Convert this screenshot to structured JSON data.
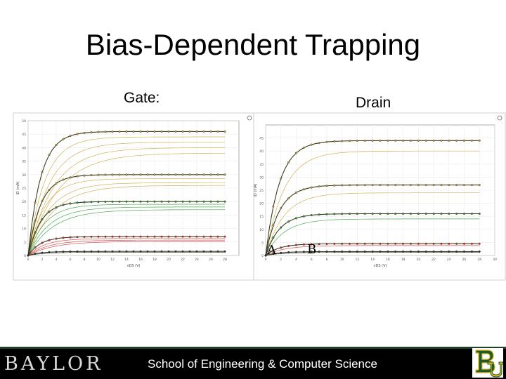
{
  "title": "Bias-Dependent Trapping",
  "labels": {
    "gate": "Gate:",
    "drain": "Drain"
  },
  "markers": {
    "a": "A",
    "b": "B"
  },
  "footer": {
    "wordmark": "BAYLOR",
    "text": "School of Engineering & Computer Science",
    "logo": "bu-monogram-logo"
  },
  "colors": {
    "yellow_series": "#c9a43a",
    "green_series": "#2e9a36",
    "red_series": "#d23434",
    "footer_bg": "#000000",
    "logo_gold": "#e8b923",
    "logo_green": "#1e5a2c"
  },
  "chart_data": [
    {
      "type": "line",
      "xlabel": "vDS (V)",
      "ylabel": "iD (mA)",
      "xlim": [
        0,
        30
      ],
      "ylim": [
        0,
        50
      ],
      "xticks": [
        0,
        2,
        4,
        6,
        8,
        10,
        12,
        14,
        16,
        18,
        20,
        22,
        24,
        26,
        28
      ],
      "yticks": [
        0,
        5,
        10,
        15,
        20,
        25,
        30,
        35,
        40,
        45,
        50
      ],
      "groups": [
        {
          "color": "yellow",
          "measured": 46,
          "traps": [
            44,
            42,
            40,
            38
          ]
        },
        {
          "color": "yellow",
          "measured": 30,
          "traps": [
            28.5,
            27,
            26
          ]
        },
        {
          "color": "green",
          "measured": 20,
          "traps": [
            19,
            18,
            17
          ]
        },
        {
          "color": "red",
          "measured": 7,
          "traps": [
            6.3,
            5.7,
            5.2
          ]
        },
        {
          "color": "dark",
          "measured": 1.5,
          "traps": [
            1.2
          ]
        }
      ]
    },
    {
      "type": "line",
      "xlabel": "vDS (V)",
      "ylabel": "iD (mA)",
      "xlim": [
        0,
        30
      ],
      "ylim": [
        0,
        50
      ],
      "xticks": [
        0,
        2,
        4,
        6,
        8,
        10,
        12,
        14,
        16,
        18,
        20,
        22,
        24,
        26,
        28,
        30
      ],
      "yticks": [
        0,
        5,
        10,
        15,
        20,
        25,
        30,
        35,
        40,
        45
      ],
      "groups": [
        {
          "color": "yellow",
          "measured": 44,
          "traps": [
            40
          ]
        },
        {
          "color": "yellow",
          "measured": 27,
          "traps": [
            24
          ]
        },
        {
          "color": "green",
          "measured": 16,
          "traps": [
            14
          ]
        },
        {
          "color": "red",
          "measured": 4.5,
          "traps": [
            3.8
          ]
        },
        {
          "color": "dark",
          "measured": 1.5,
          "traps": [
            1.2
          ]
        }
      ]
    }
  ]
}
